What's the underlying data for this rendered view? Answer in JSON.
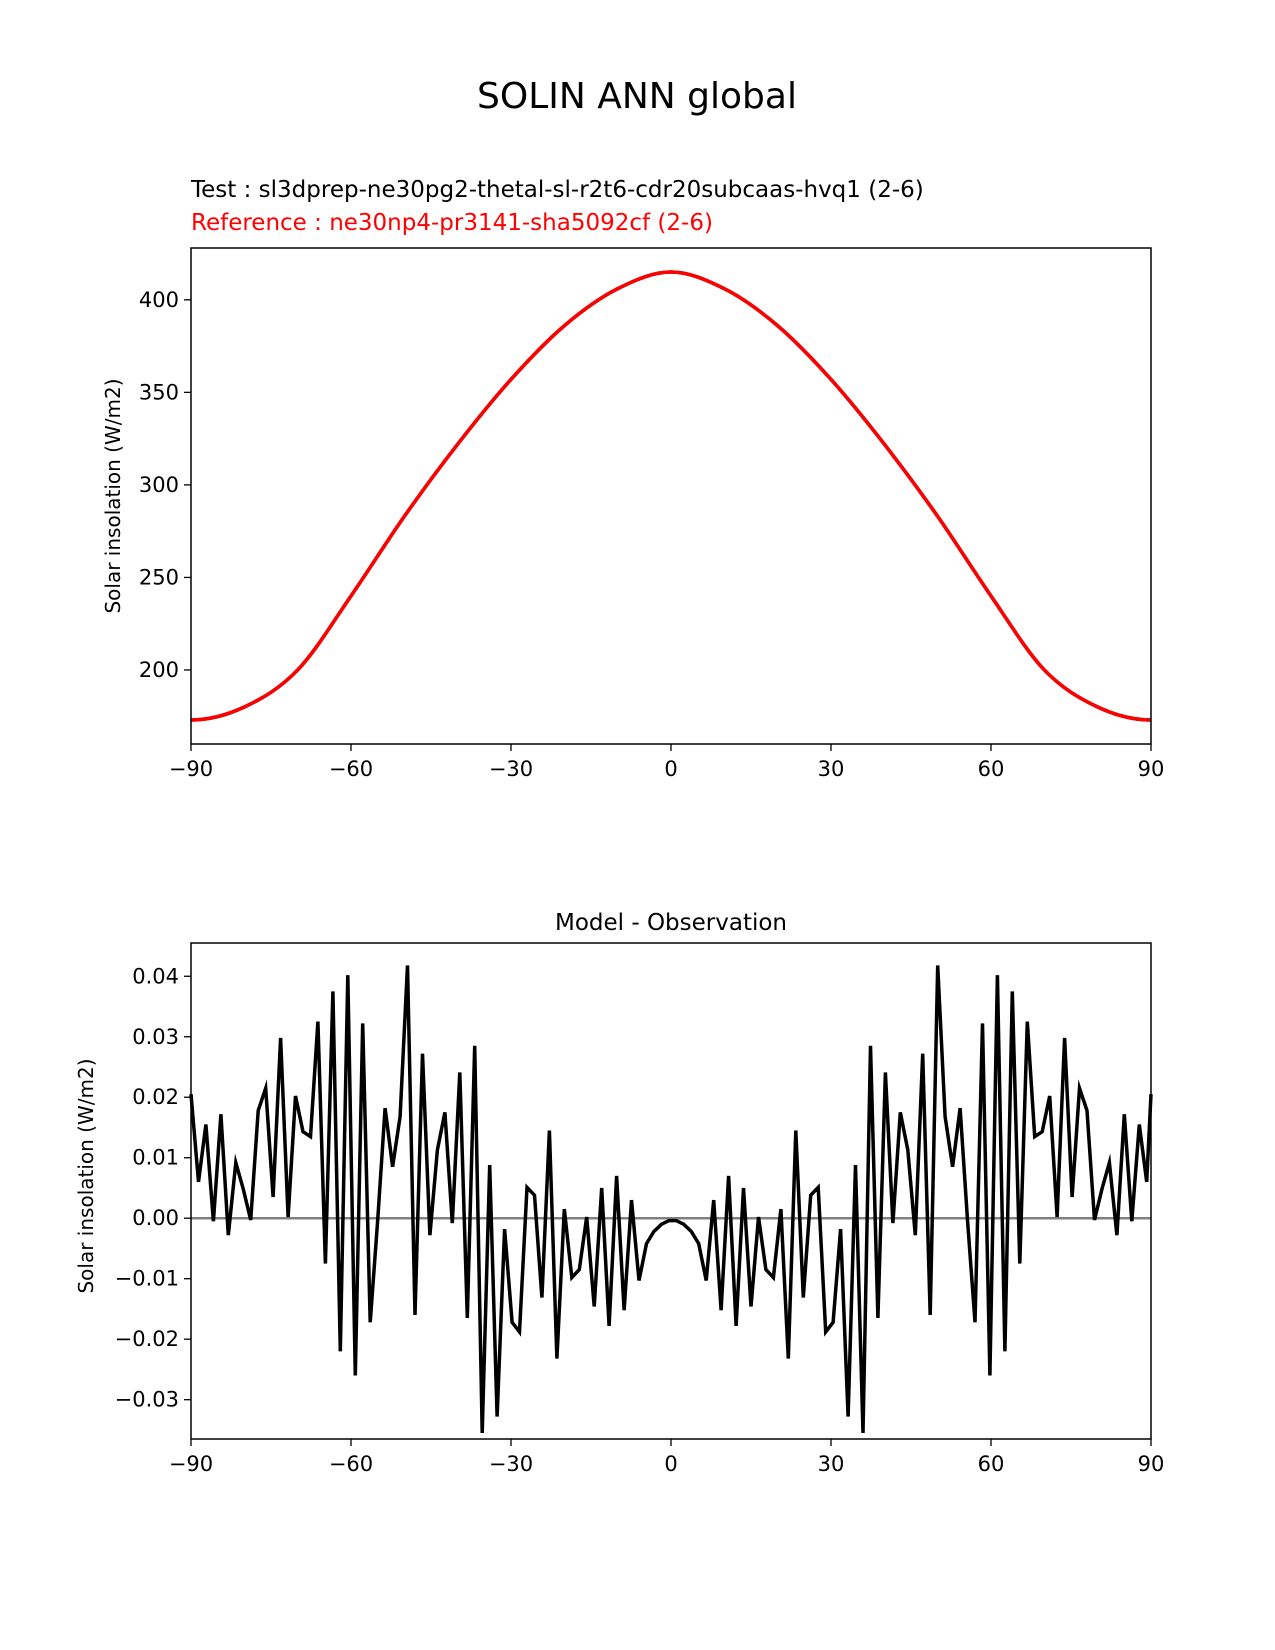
{
  "figure_title": "SOLIN ANN global",
  "chart_data": [
    {
      "type": "line",
      "title_test": "Test : sl3dprep-ne30pg2-thetal-sl-r2t6-cdr20subcaas-hvq1 (2-6)",
      "title_reference": "Reference : ne30np4-pr3141-sha5092cf (2-6)",
      "xlabel": "",
      "ylabel": "Solar insolation (W/m2)",
      "xlim": [
        -90,
        90
      ],
      "ylim": [
        160,
        428
      ],
      "xticks": [
        -90,
        -60,
        -30,
        0,
        30,
        60,
        90
      ],
      "xtick_labels": [
        "−90",
        "−60",
        "−30",
        "0",
        "30",
        "60",
        "90"
      ],
      "yticks": [
        200,
        250,
        300,
        350,
        400
      ],
      "ytick_labels": [
        "200",
        "250",
        "300",
        "350",
        "400"
      ],
      "colors": {
        "test": "#000000",
        "reference": "#ff0000"
      },
      "x": [
        -90,
        -80,
        -70,
        -60,
        -50,
        -40,
        -30,
        -20,
        -10,
        0,
        10,
        20,
        30,
        40,
        50,
        60,
        70,
        80,
        90
      ],
      "series": [
        {
          "name": "Test",
          "values": [
            173,
            180,
            200,
            240,
            283,
            322,
            357,
            386,
            406,
            415,
            406,
            386,
            357,
            322,
            283,
            240,
            200,
            180,
            173
          ]
        },
        {
          "name": "Reference",
          "values": [
            173,
            180,
            200,
            240,
            283,
            322,
            357,
            386,
            406,
            415,
            406,
            386,
            357,
            322,
            283,
            240,
            200,
            180,
            173
          ]
        }
      ]
    },
    {
      "type": "line",
      "title": "Model - Observation",
      "xlabel": "",
      "ylabel": "Solar insolation (W/m2)",
      "xlim": [
        -90,
        90
      ],
      "ylim": [
        -0.0365,
        0.0455
      ],
      "xticks": [
        -90,
        -60,
        -30,
        0,
        30,
        60,
        90
      ],
      "xtick_labels": [
        "−90",
        "−60",
        "−30",
        "0",
        "30",
        "60",
        "90"
      ],
      "yticks": [
        -0.03,
        -0.02,
        -0.01,
        0.0,
        0.01,
        0.02,
        0.03,
        0.04
      ],
      "ytick_labels": [
        "−0.03",
        "−0.02",
        "−0.01",
        "0.00",
        "0.01",
        "0.02",
        "0.03",
        "0.04"
      ],
      "zero_line": 0.0,
      "colors": {
        "difference": "#000000",
        "zero_line": "#808080"
      },
      "x_start": -90,
      "x_step": 1.4,
      "values": [
        0.0205,
        0.006,
        0.0155,
        -0.0005,
        0.0172,
        -0.0028,
        0.0092,
        0.0048,
        -0.0003,
        0.0178,
        0.0215,
        0.0035,
        0.0298,
        0.0002,
        0.0202,
        0.0143,
        0.0135,
        0.0325,
        -0.0075,
        0.0375,
        -0.022,
        0.0402,
        -0.026,
        0.0322,
        -0.0172,
        -0.0003,
        0.0182,
        0.0085,
        0.0168,
        0.0418,
        -0.016,
        0.0272,
        -0.0028,
        0.0113,
        0.0175,
        -0.0008,
        0.0241,
        -0.0165,
        0.0285,
        -0.0355,
        0.0088,
        -0.0328,
        -0.0018,
        -0.0172,
        -0.0188,
        0.0051,
        0.0038,
        -0.0131,
        0.0145,
        -0.0232,
        0.0015,
        -0.0098,
        -0.0085,
        0.0002,
        -0.0146,
        0.005,
        -0.0178,
        0.007,
        -0.0152,
        0.003,
        -0.0103,
        -0.0042,
        -0.0022,
        -0.001,
        -0.0004,
        -0.0004,
        -0.001,
        -0.0022,
        -0.0042,
        -0.0103,
        0.003,
        -0.0152,
        0.007,
        -0.0178,
        0.005,
        -0.0146,
        0.0002,
        -0.0085,
        -0.0098,
        0.0015,
        -0.0232,
        0.0145,
        -0.0131,
        0.0038,
        0.0051,
        -0.0188,
        -0.0172,
        -0.0018,
        -0.0328,
        0.0088,
        -0.0355,
        0.0285,
        -0.0165,
        0.0241,
        -0.0008,
        0.0175,
        0.0113,
        -0.0028,
        0.0272,
        -0.016,
        0.0418,
        0.0168,
        0.0085,
        0.0182,
        -0.0003,
        -0.0172,
        0.0322,
        -0.026,
        0.0402,
        -0.022,
        0.0375,
        -0.0075,
        0.0325,
        0.0135,
        0.0143,
        0.0202,
        0.0002,
        0.0298,
        0.0035,
        0.0215,
        0.0178,
        -0.0003,
        0.0048,
        0.0092,
        -0.0028,
        0.0172,
        -0.0005,
        0.0155,
        0.006,
        0.0205
      ]
    }
  ]
}
